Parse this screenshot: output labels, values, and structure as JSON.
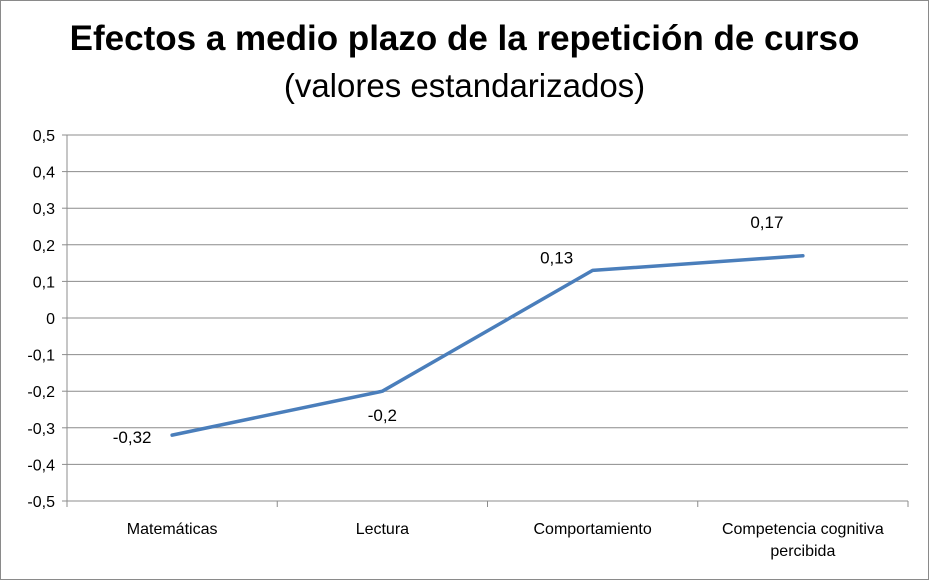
{
  "chart_data": {
    "type": "line",
    "title": "Efectos a medio plazo de la repetición de curso",
    "subtitle": "(valores estandarizados)",
    "categories": [
      "Matemáticas",
      "Lectura",
      "Comportamiento",
      "Competencia cognitiva percibida"
    ],
    "category_lines": [
      [
        "Matemáticas"
      ],
      [
        "Lectura"
      ],
      [
        "Comportamiento"
      ],
      [
        "Competencia cognitiva",
        "percibida"
      ]
    ],
    "series": [
      {
        "values": [
          -0.32,
          -0.2,
          0.13,
          0.17
        ],
        "color": "#4a7ebb"
      }
    ],
    "data_labels": [
      "-0,32",
      "-0,2",
      "0,13",
      "0,17"
    ],
    "ylim": [
      -0.5,
      0.5
    ],
    "yticks": [
      0.5,
      0.4,
      0.3,
      0.2,
      0.1,
      0,
      -0.1,
      -0.2,
      -0.3,
      -0.4,
      -0.5
    ],
    "ytick_labels": [
      "0,5",
      "0,4",
      "0,3",
      "0,2",
      "0,1",
      "0",
      "-0,1",
      "-0,2",
      "-0,3",
      "-0,4",
      "-0,5"
    ],
    "grid": true,
    "legend": "none",
    "xlabel": "",
    "ylabel": ""
  }
}
